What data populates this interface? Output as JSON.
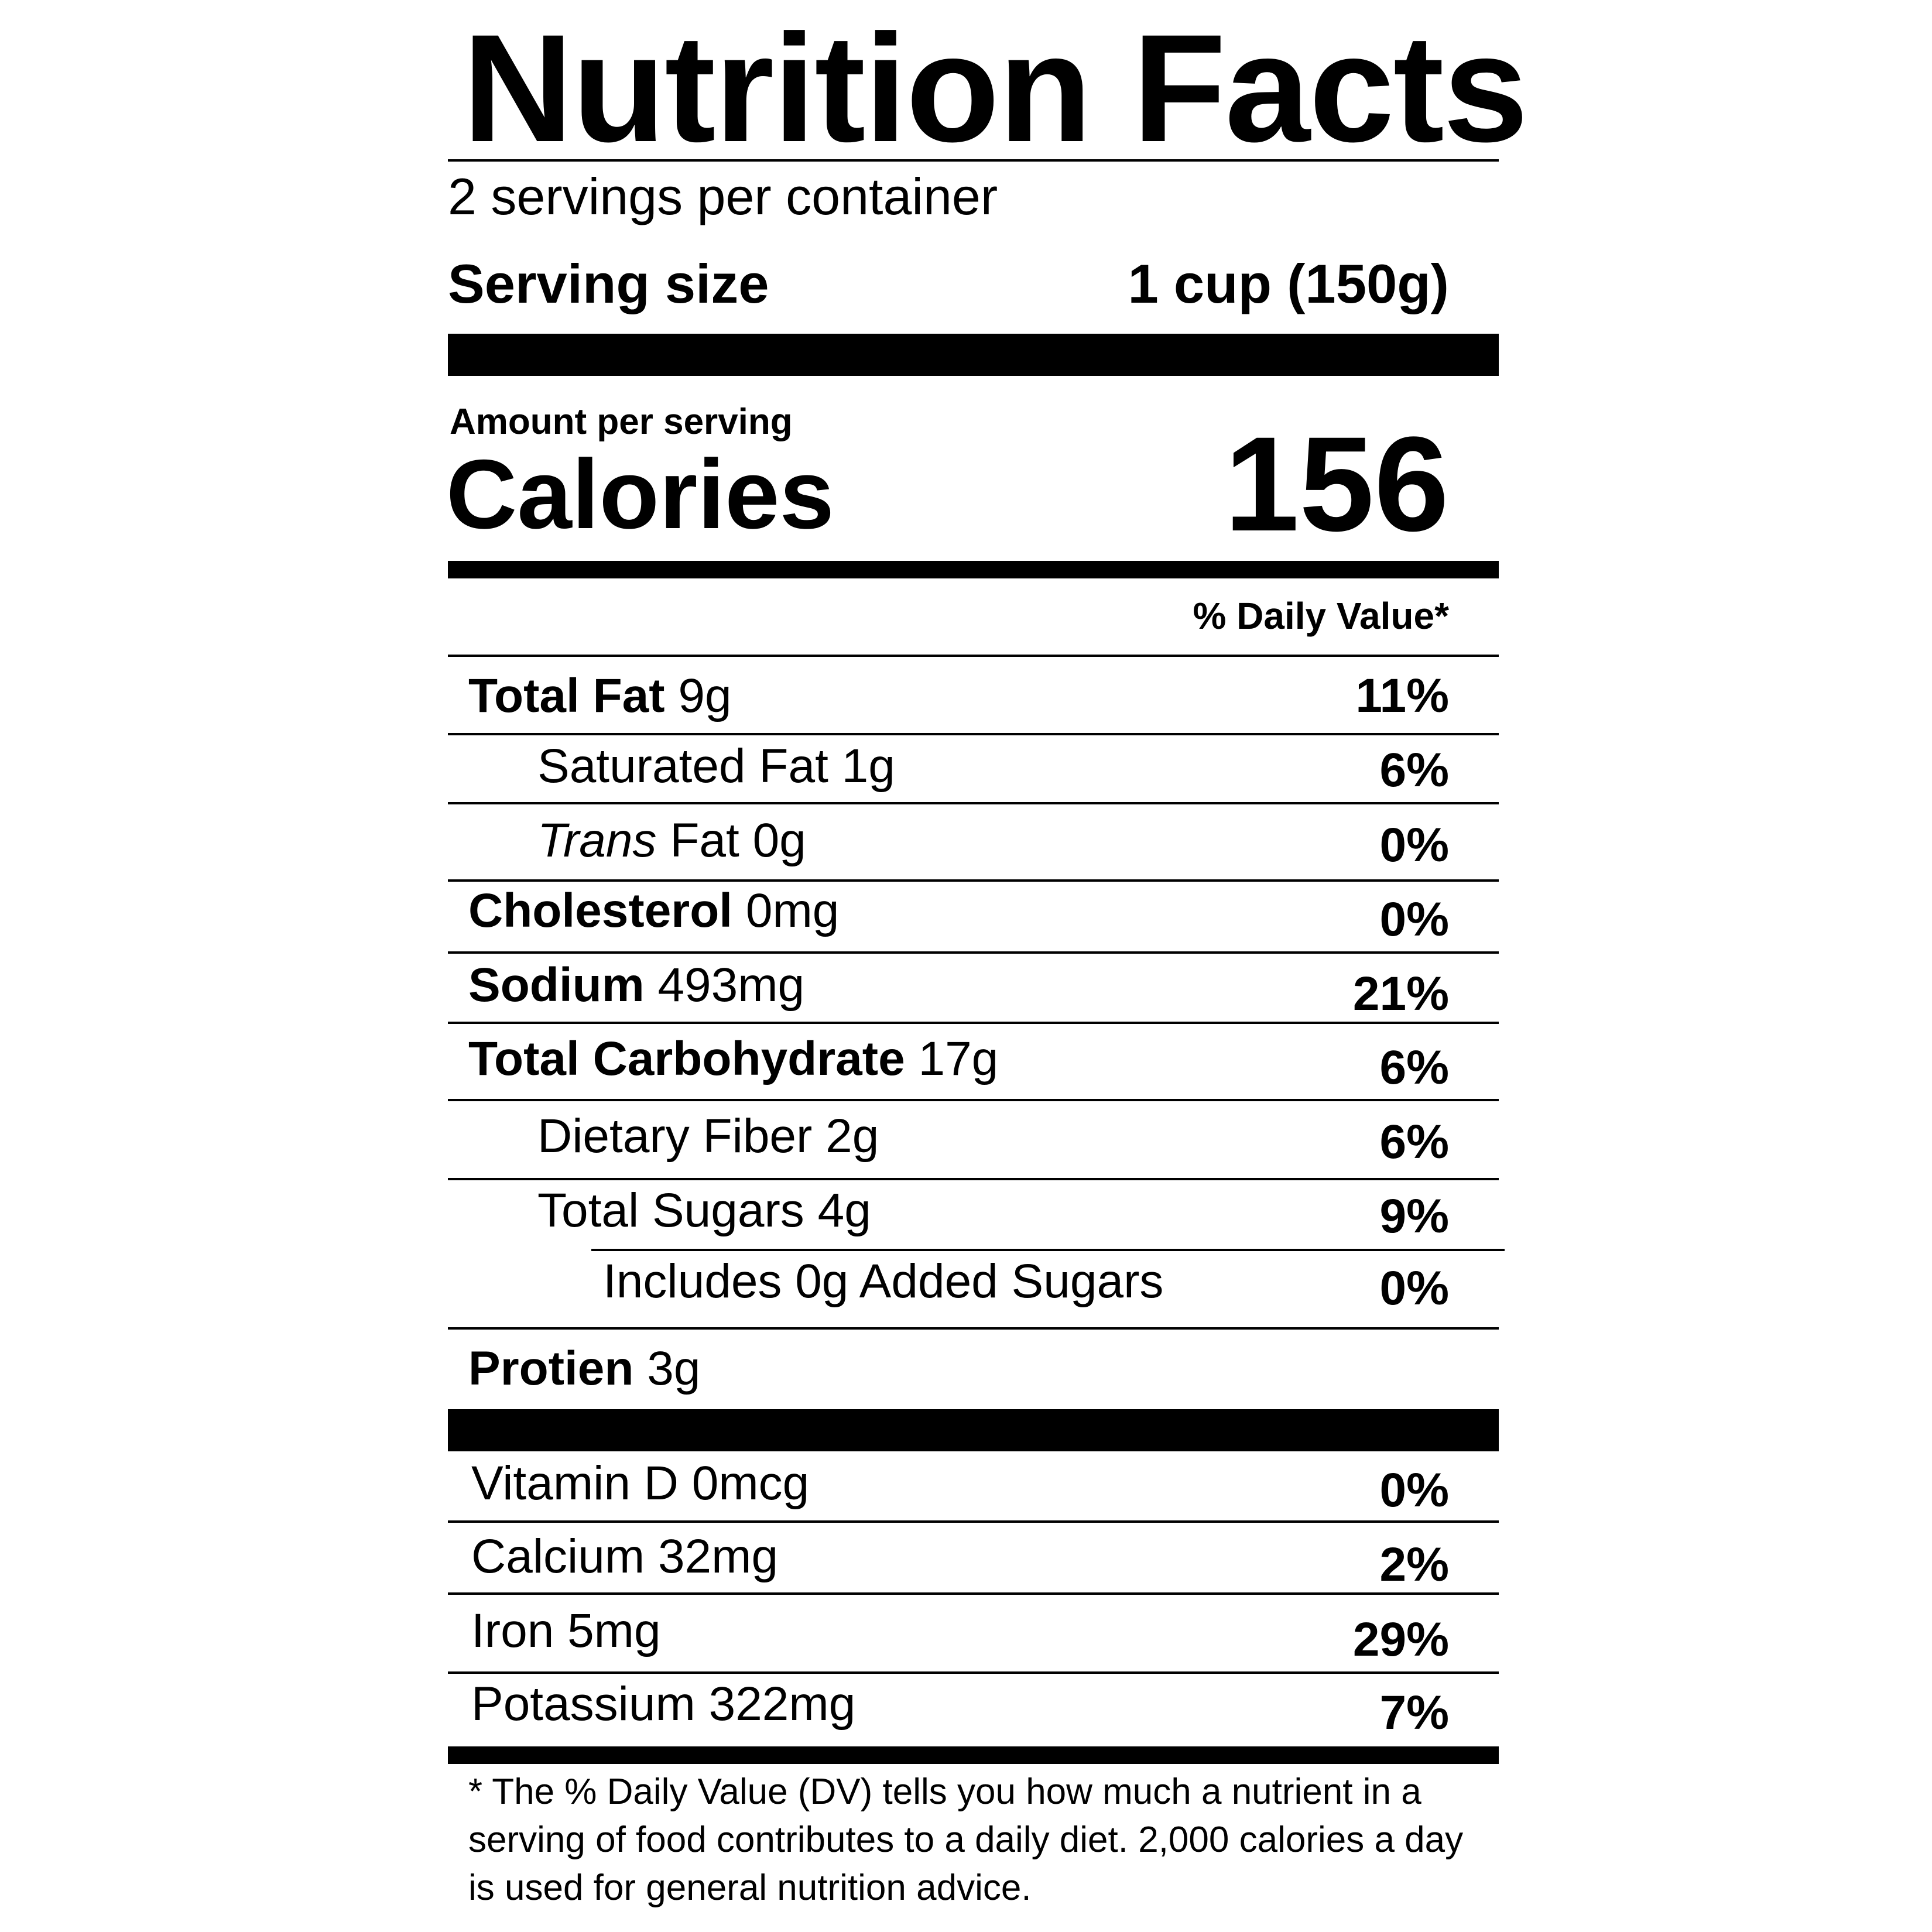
{
  "title": "Nutrition Facts",
  "servings_per_container": "2 servings per container",
  "serving_size": {
    "label": "Serving size",
    "value": "1 cup (150g)"
  },
  "amount_per_serving": "Amount per serving",
  "calories": {
    "label": "Calories",
    "value": "156"
  },
  "daily_value_header": "% Daily Value*",
  "nutrients": [
    {
      "name": "Total Fat",
      "amount": " 9g",
      "percent": "11%"
    },
    {
      "name": "Saturated Fat 1g",
      "amount": "",
      "percent": "6%"
    },
    {
      "name": "Trans",
      "amount": " Fat 0g",
      "percent": "0%"
    },
    {
      "name": "Cholesterol",
      "amount": " 0mg",
      "percent": "0%"
    },
    {
      "name": "Sodium",
      "amount": " 493mg",
      "percent": "21%"
    },
    {
      "name": "Total Carbohydrate",
      "amount": " 17g",
      "percent": "6%"
    },
    {
      "name": "Dietary Fiber 2g",
      "amount": "",
      "percent": "6%"
    },
    {
      "name": "Total Sugars 4g",
      "amount": "",
      "percent": "9%"
    },
    {
      "name": "Includes 0g Added Sugars",
      "amount": "",
      "percent": "0%"
    },
    {
      "name": "Protien",
      "amount": " 3g",
      "percent": ""
    }
  ],
  "vitamins": [
    {
      "name": "Vitamin D 0mcg",
      "percent": "0%"
    },
    {
      "name": "Calcium 32mg",
      "percent": "2%"
    },
    {
      "name": "Iron 5mg",
      "percent": "29%"
    },
    {
      "name": "Potassium 322mg",
      "percent": "7%"
    }
  ],
  "footnote": "* The % Daily Value (DV) tells you how much a nutrient in a serving of food contributes to a daily diet. 2,000 calories a day is used for general nutrition advice."
}
